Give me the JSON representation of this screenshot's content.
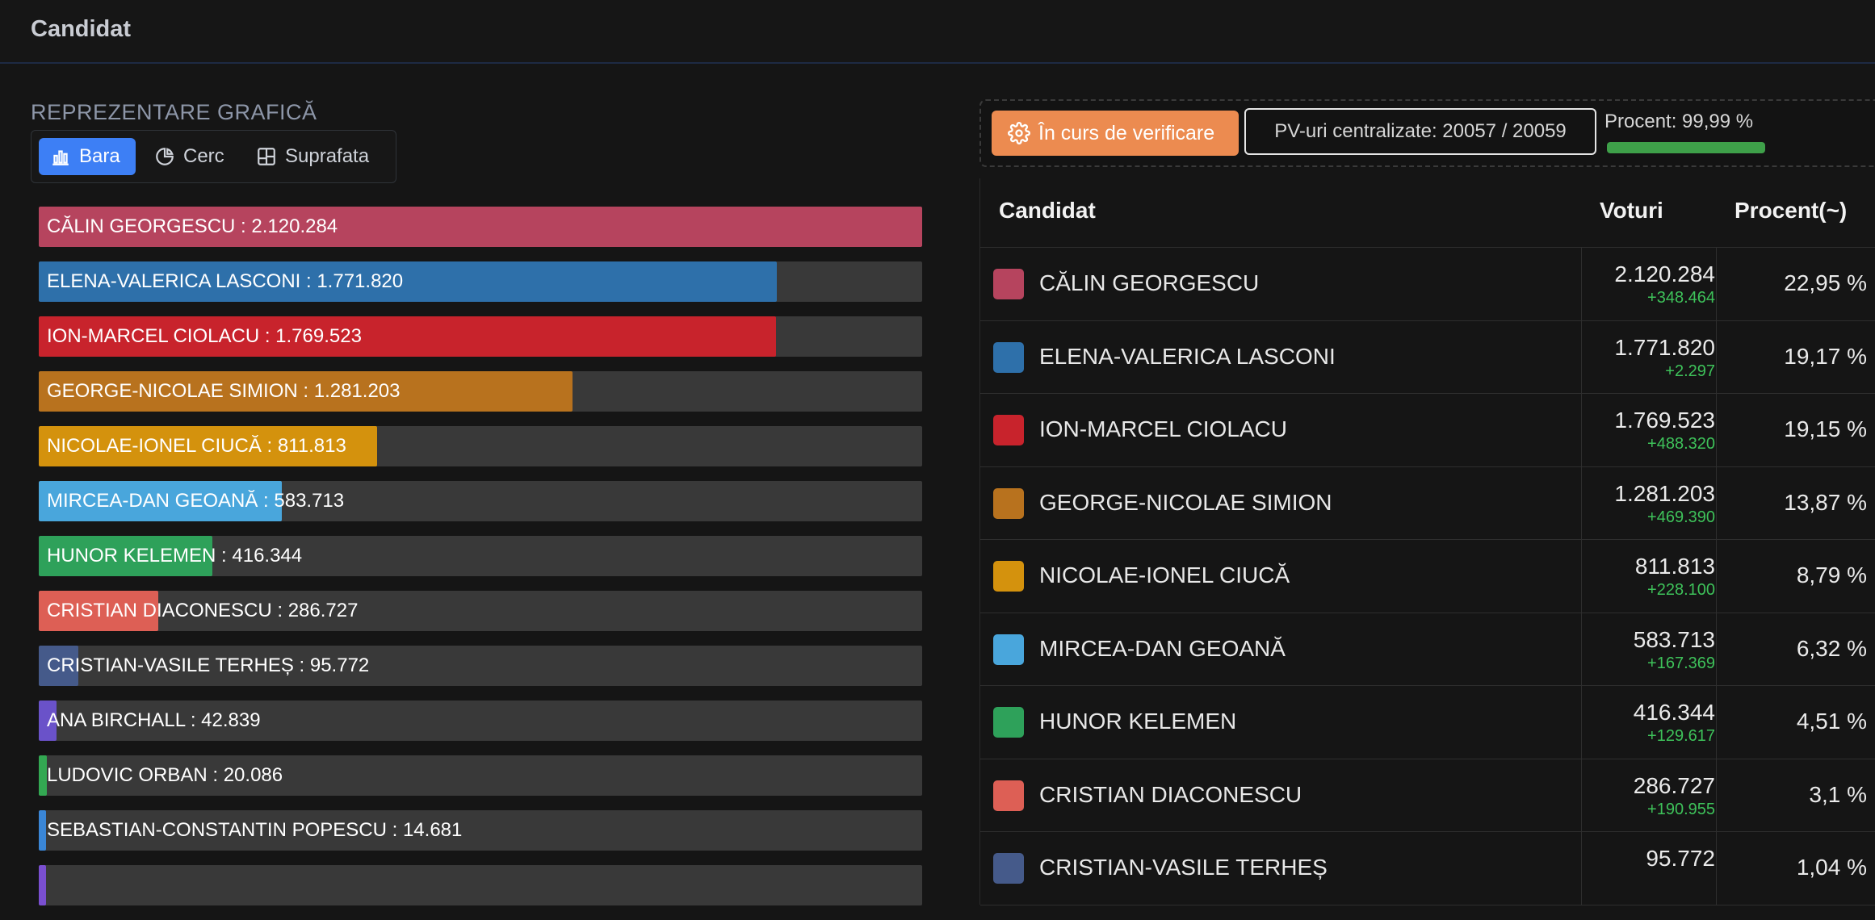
{
  "header": {
    "title": "Candidat"
  },
  "chart_section": {
    "title": "REPREZENTARE GRAFICĂ",
    "tabs": [
      {
        "label": "Bara",
        "icon": "bar-chart-icon",
        "active": true
      },
      {
        "label": "Cerc",
        "icon": "pie-chart-icon",
        "active": false
      },
      {
        "label": "Suprafata",
        "icon": "treemap-icon",
        "active": false
      }
    ]
  },
  "chart_data": {
    "type": "bar",
    "orientation": "horizontal",
    "max_value": 2120284,
    "bars": [
      {
        "label": "CĂLIN GEORGESCU : 2.120.284",
        "value": 2120284,
        "color": "#b6445e"
      },
      {
        "label": "ELENA-VALERICA LASCONI : 1.771.820",
        "value": 1771820,
        "color": "#2e70aa"
      },
      {
        "label": "ION-MARCEL CIOLACU : 1.769.523",
        "value": 1769523,
        "color": "#c8232c"
      },
      {
        "label": "GEORGE-NICOLAE SIMION : 1.281.203",
        "value": 1281203,
        "color": "#b8721e"
      },
      {
        "label": "NICOLAE-IONEL CIUCĂ : 811.813",
        "value": 811813,
        "color": "#d4920d"
      },
      {
        "label": "MIRCEA-DAN GEOANĂ : 583.713",
        "value": 583713,
        "color": "#49a6dc"
      },
      {
        "label": "HUNOR KELEMEN : 416.344",
        "value": 416344,
        "color": "#2ea15a"
      },
      {
        "label": "CRISTIAN DIACONESCU : 286.727",
        "value": 286727,
        "color": "#dd5f55"
      },
      {
        "label": "CRISTIAN-VASILE TERHEȘ : 95.772",
        "value": 95772,
        "color": "#455a8a"
      },
      {
        "label": "ANA BIRCHALL : 42.839",
        "value": 42839,
        "color": "#6a52c9"
      },
      {
        "label": "LUDOVIC ORBAN : 20.086",
        "value": 20086,
        "color": "#33a852"
      },
      {
        "label": "SEBASTIAN-CONSTANTIN POPESCU : 14.681",
        "value": 14681,
        "color": "#3a86d6"
      },
      {
        "label": "",
        "value": 12000,
        "color": "#7a4fd0"
      }
    ]
  },
  "status": {
    "button_label": "În curs de verificare",
    "button_icon": "gear-icon",
    "pv_text": "PV-uri centralizate: 20057 / 20059",
    "percent_text": "Procent: 99,99 %",
    "percent_value": 99.99
  },
  "table": {
    "headers": {
      "candidate": "Candidat",
      "votes": "Voturi",
      "percent": "Procent(~)"
    },
    "rows": [
      {
        "name": "CĂLIN GEORGESCU",
        "votes": "2.120.284",
        "delta": "+348.464",
        "percent": "22,95 %",
        "color": "#b6445e"
      },
      {
        "name": "ELENA-VALERICA LASCONI",
        "votes": "1.771.820",
        "delta": "+2.297",
        "percent": "19,17 %",
        "color": "#2e70aa"
      },
      {
        "name": "ION-MARCEL CIOLACU",
        "votes": "1.769.523",
        "delta": "+488.320",
        "percent": "19,15 %",
        "color": "#c8232c"
      },
      {
        "name": "GEORGE-NICOLAE SIMION",
        "votes": "1.281.203",
        "delta": "+469.390",
        "percent": "13,87 %",
        "color": "#b8721e"
      },
      {
        "name": "NICOLAE-IONEL CIUCĂ",
        "votes": "811.813",
        "delta": "+228.100",
        "percent": "8,79 %",
        "color": "#d4920d"
      },
      {
        "name": "MIRCEA-DAN GEOANĂ",
        "votes": "583.713",
        "delta": "+167.369",
        "percent": "6,32 %",
        "color": "#49a6dc"
      },
      {
        "name": "HUNOR KELEMEN",
        "votes": "416.344",
        "delta": "+129.617",
        "percent": "4,51 %",
        "color": "#2ea15a"
      },
      {
        "name": "CRISTIAN DIACONESCU",
        "votes": "286.727",
        "delta": "+190.955",
        "percent": "3,1 %",
        "color": "#dd5f55"
      },
      {
        "name": "CRISTIAN-VASILE TERHEȘ",
        "votes": "95.772",
        "delta": "",
        "percent": "1,04 %",
        "color": "#455a8a"
      }
    ]
  }
}
